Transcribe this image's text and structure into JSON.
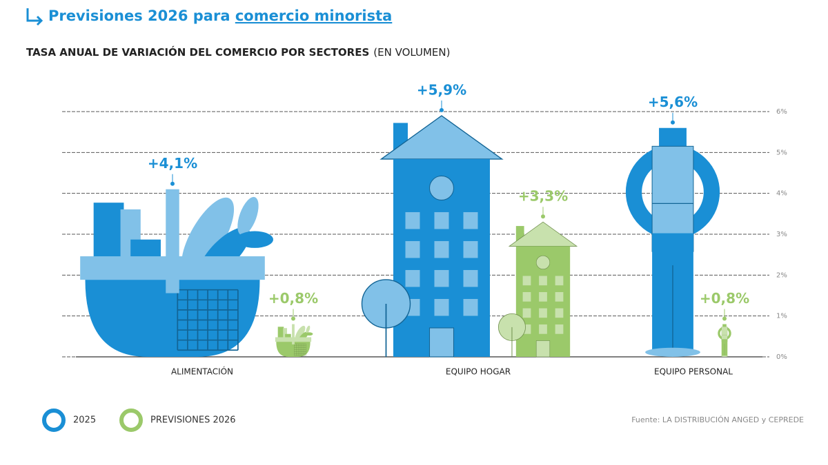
{
  "header": {
    "title_lead": "Previsiones 2026 para ",
    "title_link": "comercio minorista"
  },
  "chart_data": {
    "type": "bar",
    "title": "TASA ANUAL DE VARIACIÓN DEL COMERCIO POR SECTORES",
    "subtitle": "(EN VOLUMEN)",
    "categories": [
      "ALIMENTACIÓN",
      "EQUIPO HOGAR",
      "EQUIPO PERSONAL"
    ],
    "series": [
      {
        "name": "2025",
        "color": "#1a8fd5",
        "values": [
          4.1,
          5.9,
          5.6
        ],
        "value_labels": [
          "+4,1%",
          "+5,9%",
          "+5,6%"
        ]
      },
      {
        "name": "PREVISIONES 2026",
        "color": "#9bc96a",
        "values": [
          0.8,
          3.3,
          0.8
        ],
        "value_labels": [
          "+0,8%",
          "+3,3%",
          "+0,8%"
        ]
      }
    ],
    "ylim": [
      0,
      6
    ],
    "yticks": [
      {
        "value": 0,
        "label": "0%"
      },
      {
        "value": 1,
        "label": "1%"
      },
      {
        "value": 2,
        "label": "2%"
      },
      {
        "value": 3,
        "label": "3%"
      },
      {
        "value": 4,
        "label": "4%"
      },
      {
        "value": 5,
        "label": "5%"
      },
      {
        "value": 6,
        "label": "6%"
      }
    ],
    "grid": true,
    "source": "Fuente: LA DISTRIBUCIÓN ANGED y CEPREDE"
  }
}
